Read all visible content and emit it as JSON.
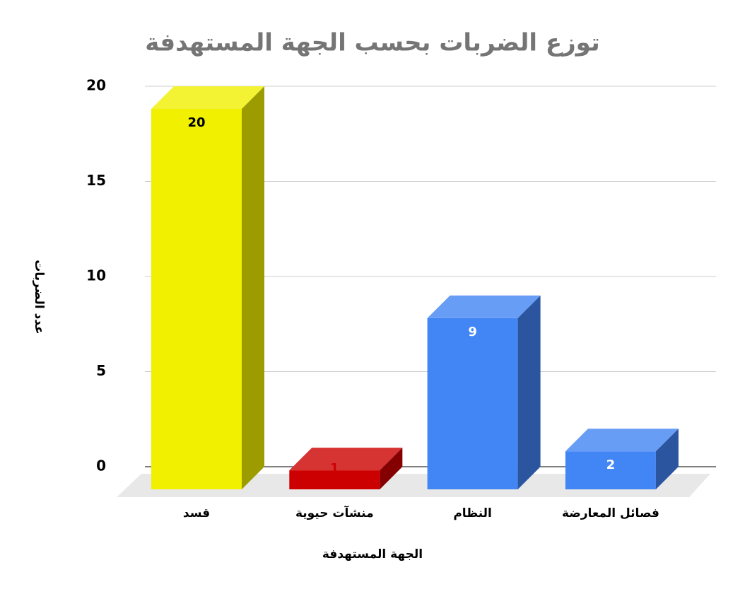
{
  "chart_data": {
    "type": "bar3d",
    "title": "توزع الضربات بحسب الجهة المستهدفة",
    "x_label": "الجهة المستهدفة",
    "y_label": "عدد الضربات",
    "categories": [
      "قسد",
      "منشآت حيوية",
      "النظام",
      "فصائل المعارضة"
    ],
    "values": [
      20,
      1,
      9,
      2
    ],
    "colors": [
      "#f0f000",
      "#cc0000",
      "#4285f4",
      "#4285f4"
    ],
    "label_colors": [
      "#000000",
      "#cc0000",
      "#ffffff",
      "#ffffff"
    ],
    "ylim": [
      0,
      20
    ],
    "yticks": [
      0,
      5,
      10,
      15,
      20
    ],
    "grid": true
  }
}
